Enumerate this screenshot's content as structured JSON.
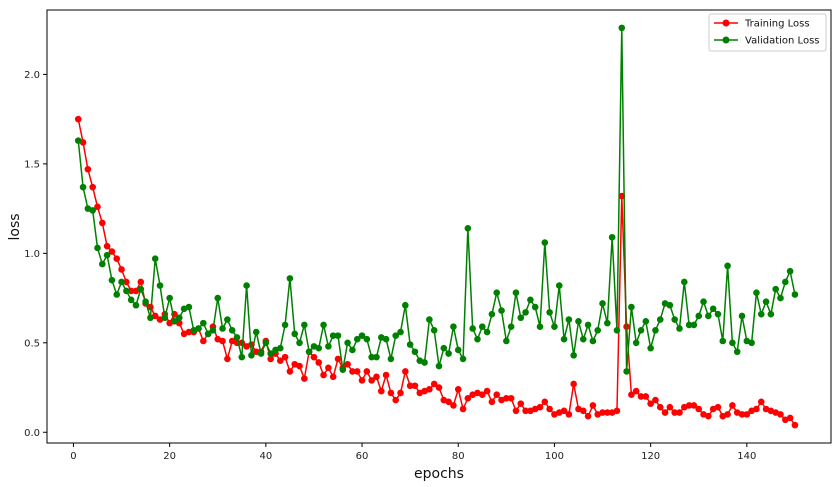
{
  "chart_data": {
    "type": "line",
    "title": "",
    "xlabel": "epochs",
    "ylabel": "loss",
    "xlim": [
      -5.5,
      157.5
    ],
    "ylim": [
      -0.06,
      2.36
    ],
    "xticks": [
      0,
      20,
      40,
      60,
      80,
      100,
      120,
      140
    ],
    "yticks": [
      0.0,
      0.5,
      1.0,
      1.5,
      2.0
    ],
    "xtick_labels": [
      "0",
      "20",
      "40",
      "60",
      "80",
      "100",
      "120",
      "140"
    ],
    "ytick_labels": [
      "0.0",
      "0.5",
      "1.0",
      "1.5",
      "2.0"
    ],
    "grid": false,
    "legend_position": "top-right",
    "x": [
      1,
      2,
      3,
      4,
      5,
      6,
      7,
      8,
      9,
      10,
      11,
      12,
      13,
      14,
      15,
      16,
      17,
      18,
      19,
      20,
      21,
      22,
      23,
      24,
      25,
      26,
      27,
      28,
      29,
      30,
      31,
      32,
      33,
      34,
      35,
      36,
      37,
      38,
      39,
      40,
      41,
      42,
      43,
      44,
      45,
      46,
      47,
      48,
      49,
      50,
      51,
      52,
      53,
      54,
      55,
      56,
      57,
      58,
      59,
      60,
      61,
      62,
      63,
      64,
      65,
      66,
      67,
      68,
      69,
      70,
      71,
      72,
      73,
      74,
      75,
      76,
      77,
      78,
      79,
      80,
      81,
      82,
      83,
      84,
      85,
      86,
      87,
      88,
      89,
      90,
      91,
      92,
      93,
      94,
      95,
      96,
      97,
      98,
      99,
      100,
      101,
      102,
      103,
      104,
      105,
      106,
      107,
      108,
      109,
      110,
      111,
      112,
      113,
      114,
      115,
      116,
      117,
      118,
      119,
      120,
      121,
      122,
      123,
      124,
      125,
      126,
      127,
      128,
      129,
      130,
      131,
      132,
      133,
      134,
      135,
      136,
      137,
      138,
      139,
      140,
      141,
      142,
      143,
      144,
      145,
      146,
      147,
      148,
      149,
      150
    ],
    "series": [
      {
        "name": "Training Loss",
        "color": "#ff0000",
        "values": [
          1.75,
          1.62,
          1.47,
          1.37,
          1.26,
          1.17,
          1.04,
          1.01,
          0.97,
          0.91,
          0.84,
          0.79,
          0.79,
          0.84,
          0.72,
          0.7,
          0.65,
          0.63,
          0.66,
          0.61,
          0.66,
          0.61,
          0.55,
          0.56,
          0.56,
          0.58,
          0.51,
          0.55,
          0.59,
          0.52,
          0.51,
          0.41,
          0.51,
          0.5,
          0.5,
          0.48,
          0.49,
          0.45,
          0.45,
          0.51,
          0.41,
          0.44,
          0.4,
          0.42,
          0.34,
          0.38,
          0.37,
          0.3,
          0.45,
          0.42,
          0.39,
          0.32,
          0.36,
          0.31,
          0.41,
          0.36,
          0.38,
          0.34,
          0.34,
          0.29,
          0.34,
          0.29,
          0.31,
          0.23,
          0.32,
          0.22,
          0.18,
          0.22,
          0.34,
          0.26,
          0.26,
          0.22,
          0.23,
          0.24,
          0.27,
          0.25,
          0.18,
          0.17,
          0.15,
          0.24,
          0.13,
          0.19,
          0.21,
          0.22,
          0.21,
          0.23,
          0.17,
          0.21,
          0.18,
          0.19,
          0.19,
          0.12,
          0.16,
          0.12,
          0.12,
          0.13,
          0.14,
          0.17,
          0.13,
          0.1,
          0.11,
          0.12,
          0.1,
          0.27,
          0.13,
          0.12,
          0.09,
          0.15,
          0.1,
          0.11,
          0.11,
          0.11,
          0.12,
          1.32,
          0.59,
          0.21,
          0.23,
          0.2,
          0.2,
          0.16,
          0.18,
          0.14,
          0.11,
          0.14,
          0.11,
          0.11,
          0.14,
          0.15,
          0.15,
          0.13,
          0.1,
          0.09,
          0.13,
          0.14,
          0.09,
          0.1,
          0.15,
          0.11,
          0.1,
          0.1,
          0.12,
          0.13,
          0.17,
          0.13,
          0.12,
          0.11,
          0.1,
          0.07,
          0.08,
          0.04
        ]
      },
      {
        "name": "Validation Loss",
        "color": "#008000",
        "values": [
          1.63,
          1.37,
          1.25,
          1.24,
          1.03,
          0.94,
          0.99,
          0.85,
          0.77,
          0.84,
          0.79,
          0.74,
          0.71,
          0.8,
          0.73,
          0.64,
          0.97,
          0.82,
          0.64,
          0.75,
          0.62,
          0.64,
          0.69,
          0.7,
          0.57,
          0.58,
          0.61,
          0.55,
          0.57,
          0.75,
          0.58,
          0.63,
          0.57,
          0.53,
          0.42,
          0.82,
          0.43,
          0.56,
          0.44,
          0.5,
          0.44,
          0.46,
          0.47,
          0.6,
          0.86,
          0.55,
          0.5,
          0.6,
          0.45,
          0.48,
          0.47,
          0.6,
          0.48,
          0.54,
          0.54,
          0.35,
          0.5,
          0.46,
          0.52,
          0.54,
          0.52,
          0.42,
          0.42,
          0.53,
          0.52,
          0.41,
          0.54,
          0.56,
          0.71,
          0.49,
          0.45,
          0.4,
          0.39,
          0.63,
          0.57,
          0.37,
          0.47,
          0.44,
          0.59,
          0.46,
          0.41,
          1.14,
          0.58,
          0.52,
          0.59,
          0.56,
          0.66,
          0.78,
          0.68,
          0.51,
          0.59,
          0.78,
          0.64,
          0.67,
          0.74,
          0.7,
          0.59,
          1.06,
          0.67,
          0.59,
          0.82,
          0.52,
          0.63,
          0.43,
          0.62,
          0.52,
          0.6,
          0.51,
          0.57,
          0.72,
          0.61,
          1.09,
          0.57,
          2.26,
          0.34,
          0.7,
          0.5,
          0.57,
          0.62,
          0.47,
          0.57,
          0.63,
          0.72,
          0.71,
          0.63,
          0.58,
          0.84,
          0.6,
          0.6,
          0.65,
          0.73,
          0.65,
          0.69,
          0.66,
          0.51,
          0.93,
          0.5,
          0.45,
          0.65,
          0.51,
          0.5,
          0.78,
          0.66,
          0.73,
          0.66,
          0.8,
          0.75,
          0.84,
          0.9,
          0.77
        ]
      }
    ]
  }
}
